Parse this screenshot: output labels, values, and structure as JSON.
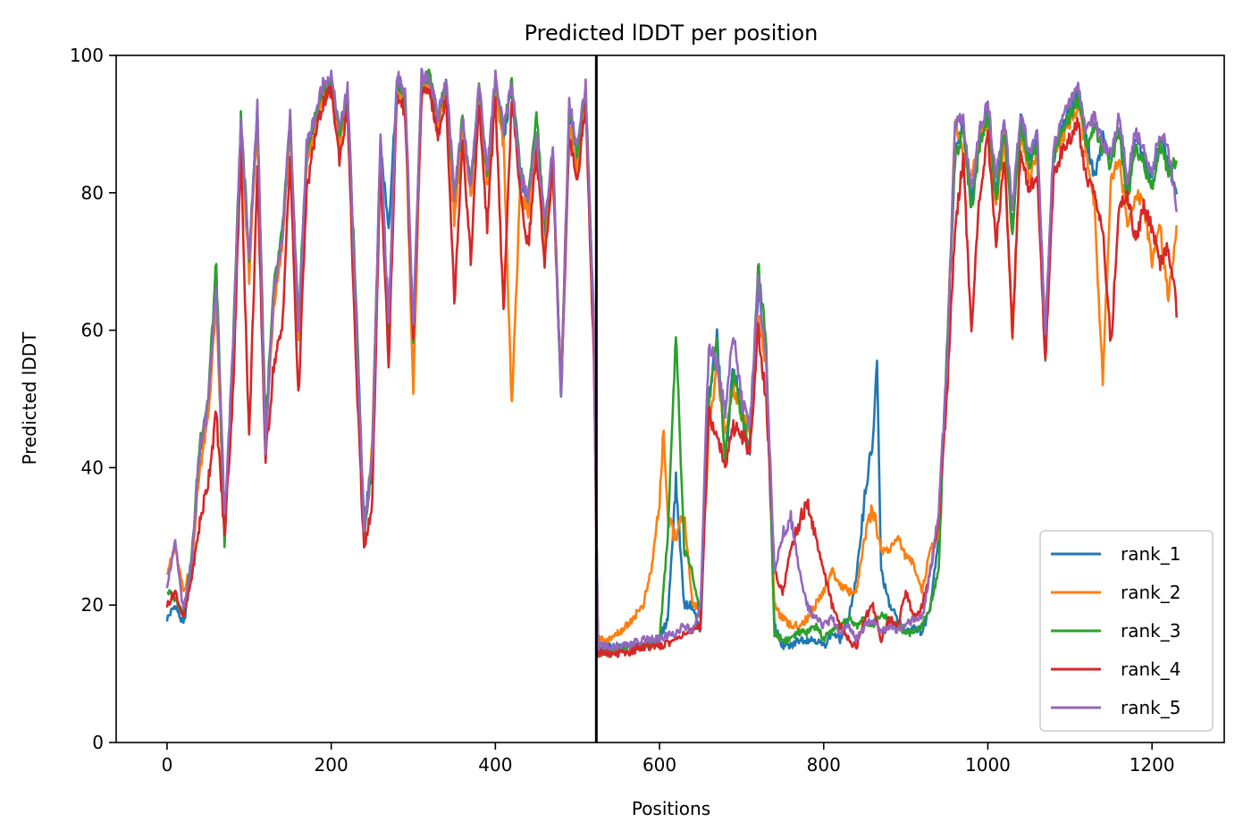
{
  "chart_data": {
    "type": "line",
    "title": "Predicted lDDT per position",
    "xlabel": "Positions",
    "ylabel": "Predicted lDDT",
    "xlim": [
      -62,
      1288
    ],
    "ylim": [
      0,
      100
    ],
    "xticks": [
      0,
      200,
      400,
      600,
      800,
      1000,
      1200
    ],
    "yticks": [
      0,
      20,
      40,
      60,
      80,
      100
    ],
    "grid": false,
    "legend_position": "lower-right",
    "vline_x": 523,
    "series": [
      {
        "name": "rank_1",
        "color": "#1f77b4",
        "x": [
          0,
          10,
          20,
          30,
          40,
          50,
          60,
          70,
          80,
          90,
          100,
          110,
          120,
          130,
          140,
          150,
          160,
          170,
          180,
          190,
          200,
          210,
          220,
          230,
          240,
          250,
          260,
          270,
          280,
          290,
          300,
          310,
          320,
          330,
          340,
          350,
          360,
          370,
          380,
          390,
          400,
          410,
          420,
          430,
          440,
          450,
          460,
          470,
          480,
          490,
          500,
          510,
          520,
          525,
          540,
          560,
          580,
          600,
          610,
          620,
          630,
          640,
          650,
          660,
          670,
          680,
          690,
          700,
          710,
          720,
          730,
          740,
          750,
          760,
          770,
          780,
          790,
          800,
          810,
          820,
          830,
          840,
          850,
          860,
          865,
          870,
          880,
          890,
          900,
          910,
          920,
          930,
          940,
          950,
          960,
          970,
          980,
          990,
          1000,
          1010,
          1020,
          1030,
          1040,
          1050,
          1060,
          1070,
          1080,
          1090,
          1100,
          1110,
          1120,
          1130,
          1140,
          1150,
          1160,
          1170,
          1180,
          1190,
          1200,
          1210,
          1220,
          1230
        ],
        "y": [
          18,
          20,
          17,
          25,
          42,
          48,
          66,
          30,
          55,
          90,
          70,
          92,
          42,
          65,
          73,
          90,
          60,
          85,
          90,
          95,
          96,
          88,
          94,
          64,
          32,
          40,
          87,
          75,
          96,
          94,
          58,
          96,
          97,
          90,
          96,
          78,
          90,
          80,
          95,
          82,
          96,
          88,
          95,
          82,
          78,
          88,
          74,
          85,
          50,
          92,
          85,
          94,
          60,
          14,
          14,
          14,
          14,
          15,
          18,
          38,
          20,
          20,
          16,
          50,
          59,
          41,
          55,
          48,
          42,
          66,
          55,
          17,
          14,
          14,
          15,
          15,
          15,
          14,
          16,
          15,
          18,
          24,
          36,
          44,
          55,
          25,
          20,
          18,
          16,
          17,
          16,
          20,
          30,
          55,
          86,
          90,
          78,
          88,
          92,
          80,
          90,
          75,
          91,
          85,
          88,
          58,
          86,
          90,
          92,
          95,
          88,
          82,
          88,
          85,
          90,
          80,
          88,
          85,
          82,
          88,
          84,
          80
        ]
      },
      {
        "name": "rank_2",
        "color": "#ff7f0e",
        "x": [
          0,
          10,
          20,
          30,
          40,
          50,
          60,
          70,
          80,
          90,
          100,
          110,
          120,
          130,
          140,
          150,
          160,
          170,
          180,
          190,
          200,
          210,
          220,
          230,
          240,
          250,
          260,
          270,
          280,
          290,
          300,
          310,
          320,
          330,
          340,
          350,
          360,
          370,
          380,
          390,
          400,
          410,
          420,
          430,
          440,
          450,
          460,
          470,
          480,
          490,
          500,
          510,
          520,
          525,
          540,
          560,
          580,
          590,
          600,
          605,
          610,
          620,
          630,
          640,
          650,
          660,
          670,
          680,
          690,
          700,
          710,
          720,
          730,
          740,
          750,
          760,
          770,
          780,
          790,
          800,
          810,
          820,
          830,
          840,
          850,
          860,
          870,
          880,
          890,
          900,
          910,
          920,
          930,
          940,
          950,
          960,
          970,
          980,
          990,
          1000,
          1010,
          1020,
          1030,
          1040,
          1050,
          1060,
          1070,
          1080,
          1090,
          1100,
          1110,
          1120,
          1130,
          1140,
          1150,
          1160,
          1170,
          1180,
          1190,
          1200,
          1210,
          1220,
          1230
        ],
        "y": [
          25,
          28,
          22,
          26,
          40,
          47,
          64,
          31,
          54,
          89,
          68,
          90,
          44,
          64,
          72,
          89,
          58,
          84,
          89,
          94,
          95,
          87,
          93,
          62,
          29,
          44,
          86,
          57,
          95,
          93,
          50,
          95,
          96,
          89,
          95,
          76,
          89,
          79,
          94,
          81,
          95,
          87,
          49,
          80,
          77,
          87,
          72,
          83,
          52,
          90,
          83,
          93,
          58,
          15,
          15,
          17,
          20,
          25,
          35,
          46,
          32,
          30,
          33,
          20,
          20,
          45,
          55,
          45,
          52,
          48,
          45,
          62,
          55,
          20,
          18,
          17,
          17,
          18,
          20,
          22,
          25,
          23,
          22,
          22,
          30,
          34,
          28,
          28,
          30,
          27,
          26,
          22,
          28,
          30,
          55,
          90,
          86,
          82,
          88,
          90,
          78,
          88,
          58,
          89,
          82,
          86,
          60,
          85,
          88,
          90,
          93,
          86,
          78,
          53,
          82,
          85,
          75,
          80,
          78,
          70,
          75,
          65,
          75
        ]
      },
      {
        "name": "rank_3",
        "color": "#2ca02c",
        "x": [
          0,
          10,
          20,
          30,
          40,
          50,
          60,
          70,
          80,
          90,
          100,
          110,
          120,
          130,
          140,
          150,
          160,
          170,
          180,
          190,
          200,
          210,
          220,
          230,
          240,
          250,
          260,
          270,
          280,
          290,
          300,
          310,
          320,
          330,
          340,
          350,
          360,
          370,
          380,
          390,
          400,
          410,
          420,
          430,
          440,
          450,
          460,
          470,
          480,
          490,
          500,
          510,
          520,
          525,
          540,
          560,
          580,
          600,
          610,
          615,
          620,
          630,
          640,
          650,
          660,
          670,
          680,
          690,
          700,
          710,
          720,
          730,
          740,
          750,
          760,
          770,
          780,
          790,
          800,
          810,
          820,
          830,
          840,
          850,
          860,
          870,
          880,
          890,
          900,
          910,
          920,
          930,
          940,
          950,
          960,
          970,
          980,
          990,
          1000,
          1010,
          1020,
          1030,
          1040,
          1050,
          1060,
          1070,
          1080,
          1090,
          1100,
          1110,
          1120,
          1130,
          1140,
          1150,
          1160,
          1170,
          1180,
          1190,
          1200,
          1210,
          1220,
          1230
        ],
        "y": [
          22,
          21,
          19,
          27,
          44,
          50,
          70,
          29,
          57,
          91,
          71,
          92,
          46,
          66,
          74,
          90,
          61,
          86,
          91,
          95,
          96,
          89,
          94,
          65,
          30,
          42,
          88,
          60,
          96,
          94,
          59,
          96,
          97,
          91,
          96,
          79,
          91,
          81,
          95,
          83,
          96,
          89,
          96,
          84,
          79,
          92,
          75,
          86,
          51,
          93,
          86,
          95,
          61,
          13,
          13,
          14,
          14,
          15,
          30,
          45,
          60,
          28,
          25,
          18,
          50,
          58,
          42,
          54,
          48,
          43,
          70,
          58,
          16,
          15,
          15,
          16,
          16,
          17,
          15,
          16,
          17,
          18,
          17,
          18,
          17,
          19,
          18,
          17,
          16,
          16,
          17,
          20,
          25,
          57,
          85,
          89,
          77,
          87,
          91,
          79,
          89,
          74,
          90,
          84,
          87,
          56,
          85,
          89,
          91,
          94,
          87,
          90,
          86,
          84,
          89,
          79,
          87,
          84,
          81,
          87,
          83,
          85
        ]
      },
      {
        "name": "rank_4",
        "color": "#d62728",
        "x": [
          0,
          10,
          20,
          30,
          40,
          50,
          60,
          70,
          80,
          90,
          100,
          110,
          120,
          130,
          140,
          150,
          160,
          170,
          180,
          190,
          200,
          210,
          220,
          230,
          240,
          250,
          260,
          270,
          280,
          290,
          300,
          310,
          320,
          330,
          340,
          350,
          360,
          370,
          380,
          390,
          400,
          410,
          420,
          430,
          440,
          450,
          460,
          470,
          480,
          490,
          500,
          510,
          520,
          525,
          540,
          560,
          580,
          600,
          620,
          630,
          640,
          650,
          660,
          670,
          680,
          690,
          700,
          710,
          720,
          730,
          740,
          750,
          760,
          770,
          780,
          790,
          800,
          810,
          820,
          830,
          840,
          850,
          860,
          870,
          880,
          890,
          900,
          910,
          920,
          930,
          940,
          950,
          960,
          970,
          980,
          990,
          1000,
          1010,
          1020,
          1030,
          1040,
          1050,
          1060,
          1070,
          1080,
          1090,
          1100,
          1110,
          1120,
          1130,
          1140,
          1150,
          1160,
          1170,
          1180,
          1190,
          1200,
          1210,
          1220,
          1230
        ],
        "y": [
          20,
          22,
          18,
          24,
          32,
          38,
          48,
          30,
          50,
          86,
          44,
          83,
          41,
          55,
          60,
          85,
          50,
          80,
          88,
          93,
          95,
          85,
          92,
          55,
          28,
          35,
          84,
          55,
          94,
          92,
          58,
          94,
          95,
          88,
          94,
          64,
          88,
          70,
          93,
          75,
          94,
          62,
          94,
          80,
          72,
          86,
          70,
          84,
          51,
          88,
          82,
          93,
          56,
          13,
          13,
          13,
          14,
          14,
          15,
          16,
          16,
          17,
          48,
          45,
          40,
          46,
          45,
          42,
          60,
          50,
          25,
          22,
          28,
          32,
          35,
          30,
          25,
          20,
          17,
          15,
          14,
          18,
          20,
          15,
          18,
          17,
          22,
          18,
          20,
          25,
          32,
          50,
          75,
          85,
          60,
          80,
          88,
          72,
          85,
          60,
          87,
          80,
          83,
          55,
          82,
          86,
          88,
          90,
          82,
          80,
          75,
          58,
          78,
          80,
          73,
          78,
          75,
          70,
          72,
          63
        ]
      },
      {
        "name": "rank_5",
        "color": "#9467bd",
        "x": [
          0,
          10,
          20,
          30,
          40,
          50,
          60,
          70,
          80,
          90,
          100,
          110,
          120,
          130,
          140,
          150,
          160,
          170,
          180,
          190,
          200,
          210,
          220,
          230,
          240,
          250,
          260,
          270,
          280,
          290,
          300,
          310,
          320,
          330,
          340,
          350,
          360,
          370,
          380,
          390,
          400,
          410,
          420,
          430,
          440,
          450,
          460,
          470,
          480,
          490,
          500,
          510,
          520,
          525,
          540,
          560,
          580,
          600,
          620,
          630,
          640,
          650,
          660,
          670,
          680,
          690,
          700,
          710,
          720,
          730,
          740,
          750,
          760,
          770,
          780,
          790,
          800,
          810,
          820,
          830,
          840,
          850,
          860,
          870,
          880,
          890,
          900,
          910,
          920,
          930,
          940,
          950,
          960,
          970,
          980,
          990,
          1000,
          1010,
          1020,
          1030,
          1040,
          1050,
          1060,
          1070,
          1080,
          1090,
          1100,
          1110,
          1120,
          1130,
          1140,
          1150,
          1160,
          1170,
          1180,
          1190,
          1200,
          1210,
          1220,
          1230
        ],
        "y": [
          23,
          29,
          19,
          26,
          43,
          49,
          67,
          33,
          56,
          91,
          70,
          93,
          43,
          66,
          73,
          91,
          60,
          87,
          91,
          96,
          97,
          89,
          95,
          63,
          31,
          41,
          88,
          61,
          97,
          95,
          60,
          97,
          97,
          91,
          97,
          80,
          91,
          81,
          96,
          83,
          97,
          89,
          96,
          83,
          79,
          89,
          75,
          87,
          50,
          93,
          87,
          96,
          60,
          14,
          14,
          14,
          15,
          15,
          16,
          17,
          16,
          20,
          58,
          55,
          48,
          60,
          50,
          45,
          68,
          55,
          25,
          30,
          33,
          25,
          20,
          18,
          17,
          18,
          16,
          17,
          15,
          17,
          18,
          16,
          17,
          16,
          17,
          18,
          18,
          25,
          33,
          55,
          90,
          91,
          80,
          89,
          93,
          82,
          91,
          78,
          92,
          86,
          89,
          59,
          87,
          91,
          93,
          95,
          89,
          91,
          87,
          86,
          91,
          82,
          89,
          86,
          83,
          89,
          86,
          78
        ]
      }
    ]
  }
}
